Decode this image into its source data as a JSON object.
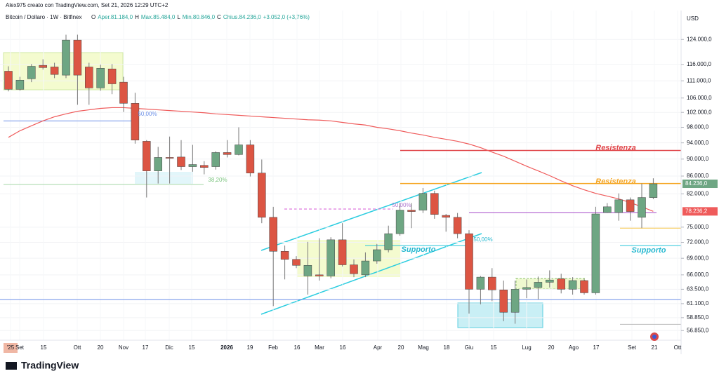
{
  "header": "Alex975 creato con TradingView.com, Set 21, 2026 12:29 UTC+2",
  "brand": "TradingView",
  "chart_data": {
    "type": "candlestick",
    "title": "Bitcoin / Dollaro · 1W · Bitfinex",
    "legend": [
      "O",
      "Aper.81.184,0",
      "H",
      "Max.85.484,0",
      "L",
      "Min.80.846,0",
      "C",
      "Chius.84.236,0",
      "+3.052,0 (+3,76%)"
    ],
    "currency": "USD",
    "log_scale": true,
    "up_color": "#6ea683",
    "down_color": "#dc5543",
    "open": [
      113900,
      108500,
      111600,
      115700,
      115200,
      112700,
      123800,
      115200,
      108900,
      114600,
      110600,
      104500,
      94400,
      87200,
      90400,
      90500,
      88200,
      88500,
      88200,
      91600,
      91100,
      93500,
      86700,
      77000,
      70300,
      68800,
      65800,
      66000,
      65800,
      72500,
      67800,
      66000,
      68500,
      70600,
      73700,
      78500,
      78500,
      82100,
      77400,
      77000,
      73700,
      63500,
      65600,
      63400,
      59700,
      63500,
      63800,
      64700,
      65300,
      63500,
      65000,
      62900,
      78000,
      78000,
      80700,
      77000,
      81184
    ],
    "high": [
      115400,
      112200,
      116100,
      117600,
      116500,
      125600,
      125600,
      116500,
      115900,
      116100,
      112200,
      107500,
      94700,
      93000,
      95600,
      94700,
      93500,
      89500,
      91900,
      94700,
      98000,
      94700,
      89900,
      79200,
      71400,
      69400,
      72100,
      72800,
      73000,
      75800,
      68800,
      70100,
      71700,
      75300,
      80000,
      80000,
      83300,
      82700,
      77700,
      77900,
      74400,
      65800,
      67200,
      65000,
      65000,
      65200,
      65700,
      66800,
      66200,
      65600,
      65300,
      79200,
      80000,
      82100,
      81200,
      84300,
      85484
    ],
    "low": [
      107900,
      108100,
      110600,
      114400,
      111800,
      111800,
      104100,
      104100,
      108100,
      107100,
      102100,
      93800,
      81200,
      84300,
      84300,
      87400,
      87000,
      86400,
      87500,
      90400,
      90900,
      85900,
      75800,
      60700,
      65200,
      67200,
      62600,
      65000,
      65400,
      67500,
      65600,
      65600,
      68000,
      70100,
      73300,
      74800,
      77900,
      76700,
      74100,
      72800,
      59500,
      61000,
      61500,
      58300,
      57900,
      62000,
      61800,
      63800,
      62800,
      62600,
      62600,
      62600,
      77900,
      76300,
      76300,
      74800,
      80846
    ],
    "close": [
      108500,
      111200,
      115400,
      115000,
      112900,
      123800,
      112700,
      108900,
      114800,
      110100,
      104500,
      94700,
      87200,
      90400,
      90200,
      88200,
      88700,
      88000,
      91600,
      91100,
      93500,
      86700,
      77000,
      70300,
      68800,
      67700,
      67700,
      65800,
      72500,
      67800,
      66200,
      68500,
      70600,
      73700,
      78500,
      78200,
      82100,
      77600,
      77000,
      73700,
      63500,
      65600,
      63400,
      59700,
      63500,
      63800,
      64700,
      65100,
      63500,
      65000,
      62900,
      77700,
      79200,
      80700,
      78200,
      81200,
      84236
    ],
    "last_close_label": "84.236,0",
    "ma": {
      "color": "#ef5b5b",
      "values": [
        95400,
        97100,
        98400,
        99700,
        100800,
        101600,
        102300,
        102700,
        103100,
        103300,
        103300,
        103100,
        102900,
        102700,
        102500,
        102300,
        102100,
        101900,
        101600,
        101400,
        101200,
        101000,
        100800,
        100600,
        100400,
        100200,
        100000,
        99900,
        99700,
        99300,
        98900,
        98600,
        98000,
        97600,
        97100,
        96500,
        96000,
        95400,
        94900,
        94400,
        93700,
        92800,
        91700,
        90700,
        89500,
        88300,
        87200,
        86100,
        84900,
        83800,
        82900,
        82100,
        81500,
        80900,
        80100,
        79200,
        78236.2
      ],
      "last_label": "78.236,2"
    },
    "ylim": [
      55400,
      134000
    ],
    "yticks": [
      {
        "value": 124000,
        "label": "124.000,0"
      },
      {
        "value": 116000,
        "label": "116.000,0"
      },
      {
        "value": 111000,
        "label": "111.000,0"
      },
      {
        "value": 106000,
        "label": "106.000,0"
      },
      {
        "value": 102000,
        "label": "102.000,0"
      },
      {
        "value": 98000,
        "label": "98.000,0"
      },
      {
        "value": 94000,
        "label": "94.000,0"
      },
      {
        "value": 90000,
        "label": "90.000,0"
      },
      {
        "value": 86000,
        "label": "86.000,0"
      },
      {
        "value": 82000,
        "label": "82.000,0"
      },
      {
        "value": 75000,
        "label": "75.000,0"
      },
      {
        "value": 72000,
        "label": "72.000,0"
      },
      {
        "value": 69000,
        "label": "69.000,0"
      },
      {
        "value": 66000,
        "label": "66.000,0"
      },
      {
        "value": 63500,
        "label": "63.500,0"
      },
      {
        "value": 61100,
        "label": "61.100,0"
      },
      {
        "value": 58850,
        "label": "58.850,0"
      },
      {
        "value": 56850,
        "label": "56.850,0"
      }
    ],
    "x_labels": [
      "'25",
      "Set",
      "15",
      "Ott",
      "20",
      "Nov",
      "17",
      "Dic",
      "15",
      "2026",
      "19",
      "Feb",
      "16",
      "Mar",
      "16",
      "Apr",
      "20",
      "Mag",
      "18",
      "Giu",
      "15",
      "Lug",
      "20",
      "Ago",
      "17",
      "Set",
      "21",
      "Ott"
    ],
    "levels": [
      {
        "value": 92100,
        "color": "#e0464a"
      },
      {
        "value": 84300,
        "color": "#f5a623"
      },
      {
        "value": 99700,
        "color": "#6b8fe8"
      },
      {
        "value": 84100,
        "color": "#a5d6a7"
      },
      {
        "value": 61800,
        "color": "#6b8fe8"
      },
      {
        "value": 78000,
        "color": "#a64ac9"
      },
      {
        "value": 74800,
        "color": "#f7c548"
      },
      {
        "value": 71400,
        "color": "#26c6da"
      },
      {
        "value": 71400,
        "color": "#26c6da"
      },
      {
        "value": 57800,
        "color": "#bbbbbb"
      }
    ],
    "annotations": [
      {
        "text": "Resistenza",
        "color": "#e0464a"
      },
      {
        "text": "Resistenza",
        "color": "#f5a623"
      },
      {
        "text": "Supporto",
        "color": "#26b8d0"
      },
      {
        "text": "Supporto",
        "color": "#26b8d0"
      },
      {
        "text": "50,00%",
        "color": "#6b8fe8"
      },
      {
        "text": "38,20%",
        "color": "#7cc47f"
      },
      {
        "text": "50,00%",
        "color": "#b07ad0"
      },
      {
        "text": "50,00%",
        "color": "#26b8d0"
      }
    ]
  }
}
